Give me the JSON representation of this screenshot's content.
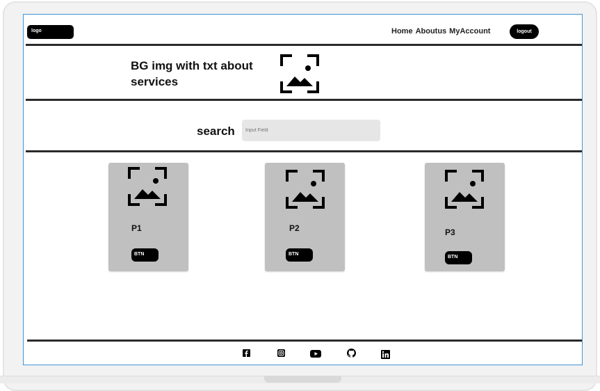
{
  "header": {
    "logo_label": "logo",
    "nav": [
      "Home",
      "Aboutus",
      "MyAccount"
    ],
    "logout_label": "logout"
  },
  "hero": {
    "text": "BG img with txt about services",
    "image_icon": "image-placeholder-icon"
  },
  "search": {
    "label": "search",
    "placeholder": "Input Field"
  },
  "products": [
    {
      "title": "P1",
      "button": "BTN",
      "image_icon": "image-placeholder-icon"
    },
    {
      "title": "P2",
      "button": "BTN",
      "image_icon": "image-placeholder-icon"
    },
    {
      "title": "P3",
      "button": "BTN",
      "image_icon": "image-placeholder-icon"
    }
  ],
  "footer": {
    "icons": [
      "facebook-icon",
      "instagram-icon",
      "youtube-icon",
      "github-icon",
      "linkedin-icon"
    ]
  },
  "colors": {
    "divider": "#2a2a2a",
    "card_bg": "#c0c0c0",
    "input_bg": "#e6e6e6",
    "screen_border": "#3d94d8"
  }
}
